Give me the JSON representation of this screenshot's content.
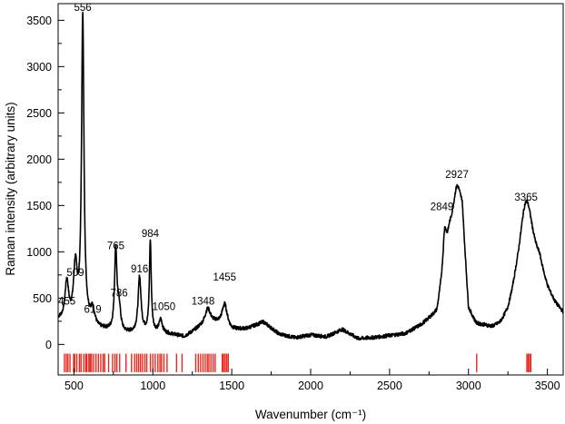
{
  "chart_data": {
    "type": "line",
    "title": "",
    "xlabel": "Wavenumber (cm⁻¹)",
    "ylabel": "Raman intensity (arbitrary units)",
    "xlim": [
      400,
      3600
    ],
    "ylim": [
      -330,
      3680
    ],
    "x_ticks": [
      500,
      1000,
      1500,
      2000,
      2500,
      3000,
      3500
    ],
    "y_ticks": [
      0,
      500,
      1000,
      1500,
      2000,
      2500,
      3000,
      3500
    ],
    "grid": false,
    "legend": "none",
    "line_color": "#000000",
    "marker_color": "#e8281f",
    "baseline": {
      "x": [
        400,
        450,
        500,
        550,
        600,
        650,
        700,
        800,
        900,
        1000,
        1100,
        1200,
        1300,
        1400,
        1500,
        1600,
        1700,
        1800,
        1900,
        2000,
        2100,
        2200,
        2300,
        2400,
        2500,
        2600,
        2700,
        2800,
        2880,
        2960,
        3000,
        3050,
        3100,
        3150,
        3200,
        3250,
        3300,
        3450,
        3500,
        3550,
        3600
      ],
      "y": [
        260,
        230,
        220,
        250,
        210,
        160,
        150,
        110,
        120,
        130,
        110,
        80,
        180,
        220,
        150,
        170,
        240,
        110,
        70,
        100,
        80,
        160,
        60,
        70,
        90,
        110,
        200,
        330,
        1150,
        1350,
        320,
        180,
        160,
        130,
        140,
        220,
        420,
        700,
        500,
        380,
        300
      ]
    },
    "peaks": [
      {
        "x": 455,
        "y": 430,
        "width": 14,
        "label": "455"
      },
      {
        "x": 509,
        "y": 590,
        "width": 14,
        "label": "509"
      },
      {
        "x": 556,
        "y": 3290,
        "width": 9,
        "label": "556"
      },
      {
        "x": 619,
        "y": 160,
        "width": 16,
        "label": "619"
      },
      {
        "x": 765,
        "y": 880,
        "width": 9,
        "label": "765"
      },
      {
        "x": 786,
        "y": 260,
        "width": 12,
        "label": "786"
      },
      {
        "x": 916,
        "y": 600,
        "width": 11,
        "label": "916"
      },
      {
        "x": 984,
        "y": 980,
        "width": 7,
        "label": "984"
      },
      {
        "x": 1050,
        "y": 140,
        "width": 12,
        "label": "1050"
      },
      {
        "x": 1348,
        "y": 180,
        "width": 22,
        "label": "1348"
      },
      {
        "x": 1455,
        "y": 250,
        "width": 20,
        "label": "1455"
      },
      {
        "x": 2849,
        "y": 360,
        "width": 12,
        "label": "2849"
      },
      {
        "x": 2927,
        "y": 420,
        "width": 30,
        "label": "2927"
      },
      {
        "x": 3365,
        "y": 1000,
        "width": 55,
        "label": "3365"
      }
    ],
    "annotation_positions": [
      {
        "label": "455",
        "x": 455,
        "y": 430
      },
      {
        "label": "509",
        "x": 509,
        "y": 740
      },
      {
        "label": "556",
        "x": 556,
        "y": 3600
      },
      {
        "label": "619",
        "x": 619,
        "y": 340
      },
      {
        "label": "765",
        "x": 765,
        "y": 1030
      },
      {
        "label": "786",
        "x": 786,
        "y": 520
      },
      {
        "label": "916",
        "x": 916,
        "y": 780
      },
      {
        "label": "984",
        "x": 984,
        "y": 1160
      },
      {
        "label": "1050",
        "x": 1070,
        "y": 370
      },
      {
        "label": "1348",
        "x": 1318,
        "y": 430
      },
      {
        "label": "1455",
        "x": 1455,
        "y": 690
      },
      {
        "label": "2849",
        "x": 2832,
        "y": 1450
      },
      {
        "label": "2927",
        "x": 2927,
        "y": 1800
      },
      {
        "label": "3365",
        "x": 3365,
        "y": 1550
      }
    ],
    "marker_band": [
      -100,
      -300
    ],
    "marker_positions": [
      440,
      452,
      462,
      475,
      498,
      505,
      518,
      535,
      545,
      562,
      575,
      582,
      595,
      603,
      612,
      625,
      640,
      655,
      670,
      685,
      695,
      720,
      745,
      760,
      772,
      790,
      830,
      865,
      885,
      898,
      910,
      922,
      935,
      950,
      962,
      985,
      1000,
      1015,
      1032,
      1045,
      1055,
      1070,
      1090,
      1150,
      1185,
      1272,
      1288,
      1303,
      1318,
      1332,
      1345,
      1355,
      1368,
      1382,
      1395,
      1440,
      1448,
      1458,
      1468,
      1478,
      3052,
      3370,
      3378,
      3387,
      3395
    ]
  }
}
